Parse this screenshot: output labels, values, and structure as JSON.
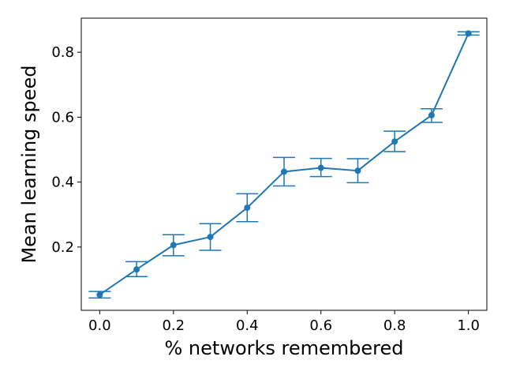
{
  "chart_data": {
    "type": "line",
    "xlabel": "% networks remembered",
    "ylabel": "Mean learning speed",
    "xlim": [
      -0.05,
      1.05
    ],
    "ylim": [
      0.005,
      0.905
    ],
    "xticks": [
      0.0,
      0.2,
      0.4,
      0.6,
      0.8,
      1.0
    ],
    "xtick_labels": [
      "0.0",
      "0.2",
      "0.4",
      "0.6",
      "0.8",
      "1.0"
    ],
    "yticks": [
      0.2,
      0.4,
      0.6,
      0.8
    ],
    "ytick_labels": [
      "0.2",
      "0.4",
      "0.6",
      "0.8"
    ],
    "grid": false,
    "series": [
      {
        "color": "#1f77b4",
        "marker": "circle",
        "error_bars": true,
        "points": [
          {
            "x": 0.0,
            "y": 0.053,
            "err_low": 0.043,
            "err_high": 0.063
          },
          {
            "x": 0.1,
            "y": 0.131,
            "err_low": 0.109,
            "err_high": 0.155
          },
          {
            "x": 0.2,
            "y": 0.206,
            "err_low": 0.173,
            "err_high": 0.238
          },
          {
            "x": 0.3,
            "y": 0.231,
            "err_low": 0.19,
            "err_high": 0.272
          },
          {
            "x": 0.4,
            "y": 0.321,
            "err_low": 0.278,
            "err_high": 0.364
          },
          {
            "x": 0.5,
            "y": 0.432,
            "err_low": 0.388,
            "err_high": 0.476
          },
          {
            "x": 0.6,
            "y": 0.444,
            "err_low": 0.417,
            "err_high": 0.473
          },
          {
            "x": 0.7,
            "y": 0.435,
            "err_low": 0.398,
            "err_high": 0.472
          },
          {
            "x": 0.8,
            "y": 0.525,
            "err_low": 0.494,
            "err_high": 0.557
          },
          {
            "x": 0.9,
            "y": 0.606,
            "err_low": 0.584,
            "err_high": 0.626
          },
          {
            "x": 1.0,
            "y": 0.858,
            "err_low": 0.853,
            "err_high": 0.863
          }
        ]
      }
    ]
  }
}
